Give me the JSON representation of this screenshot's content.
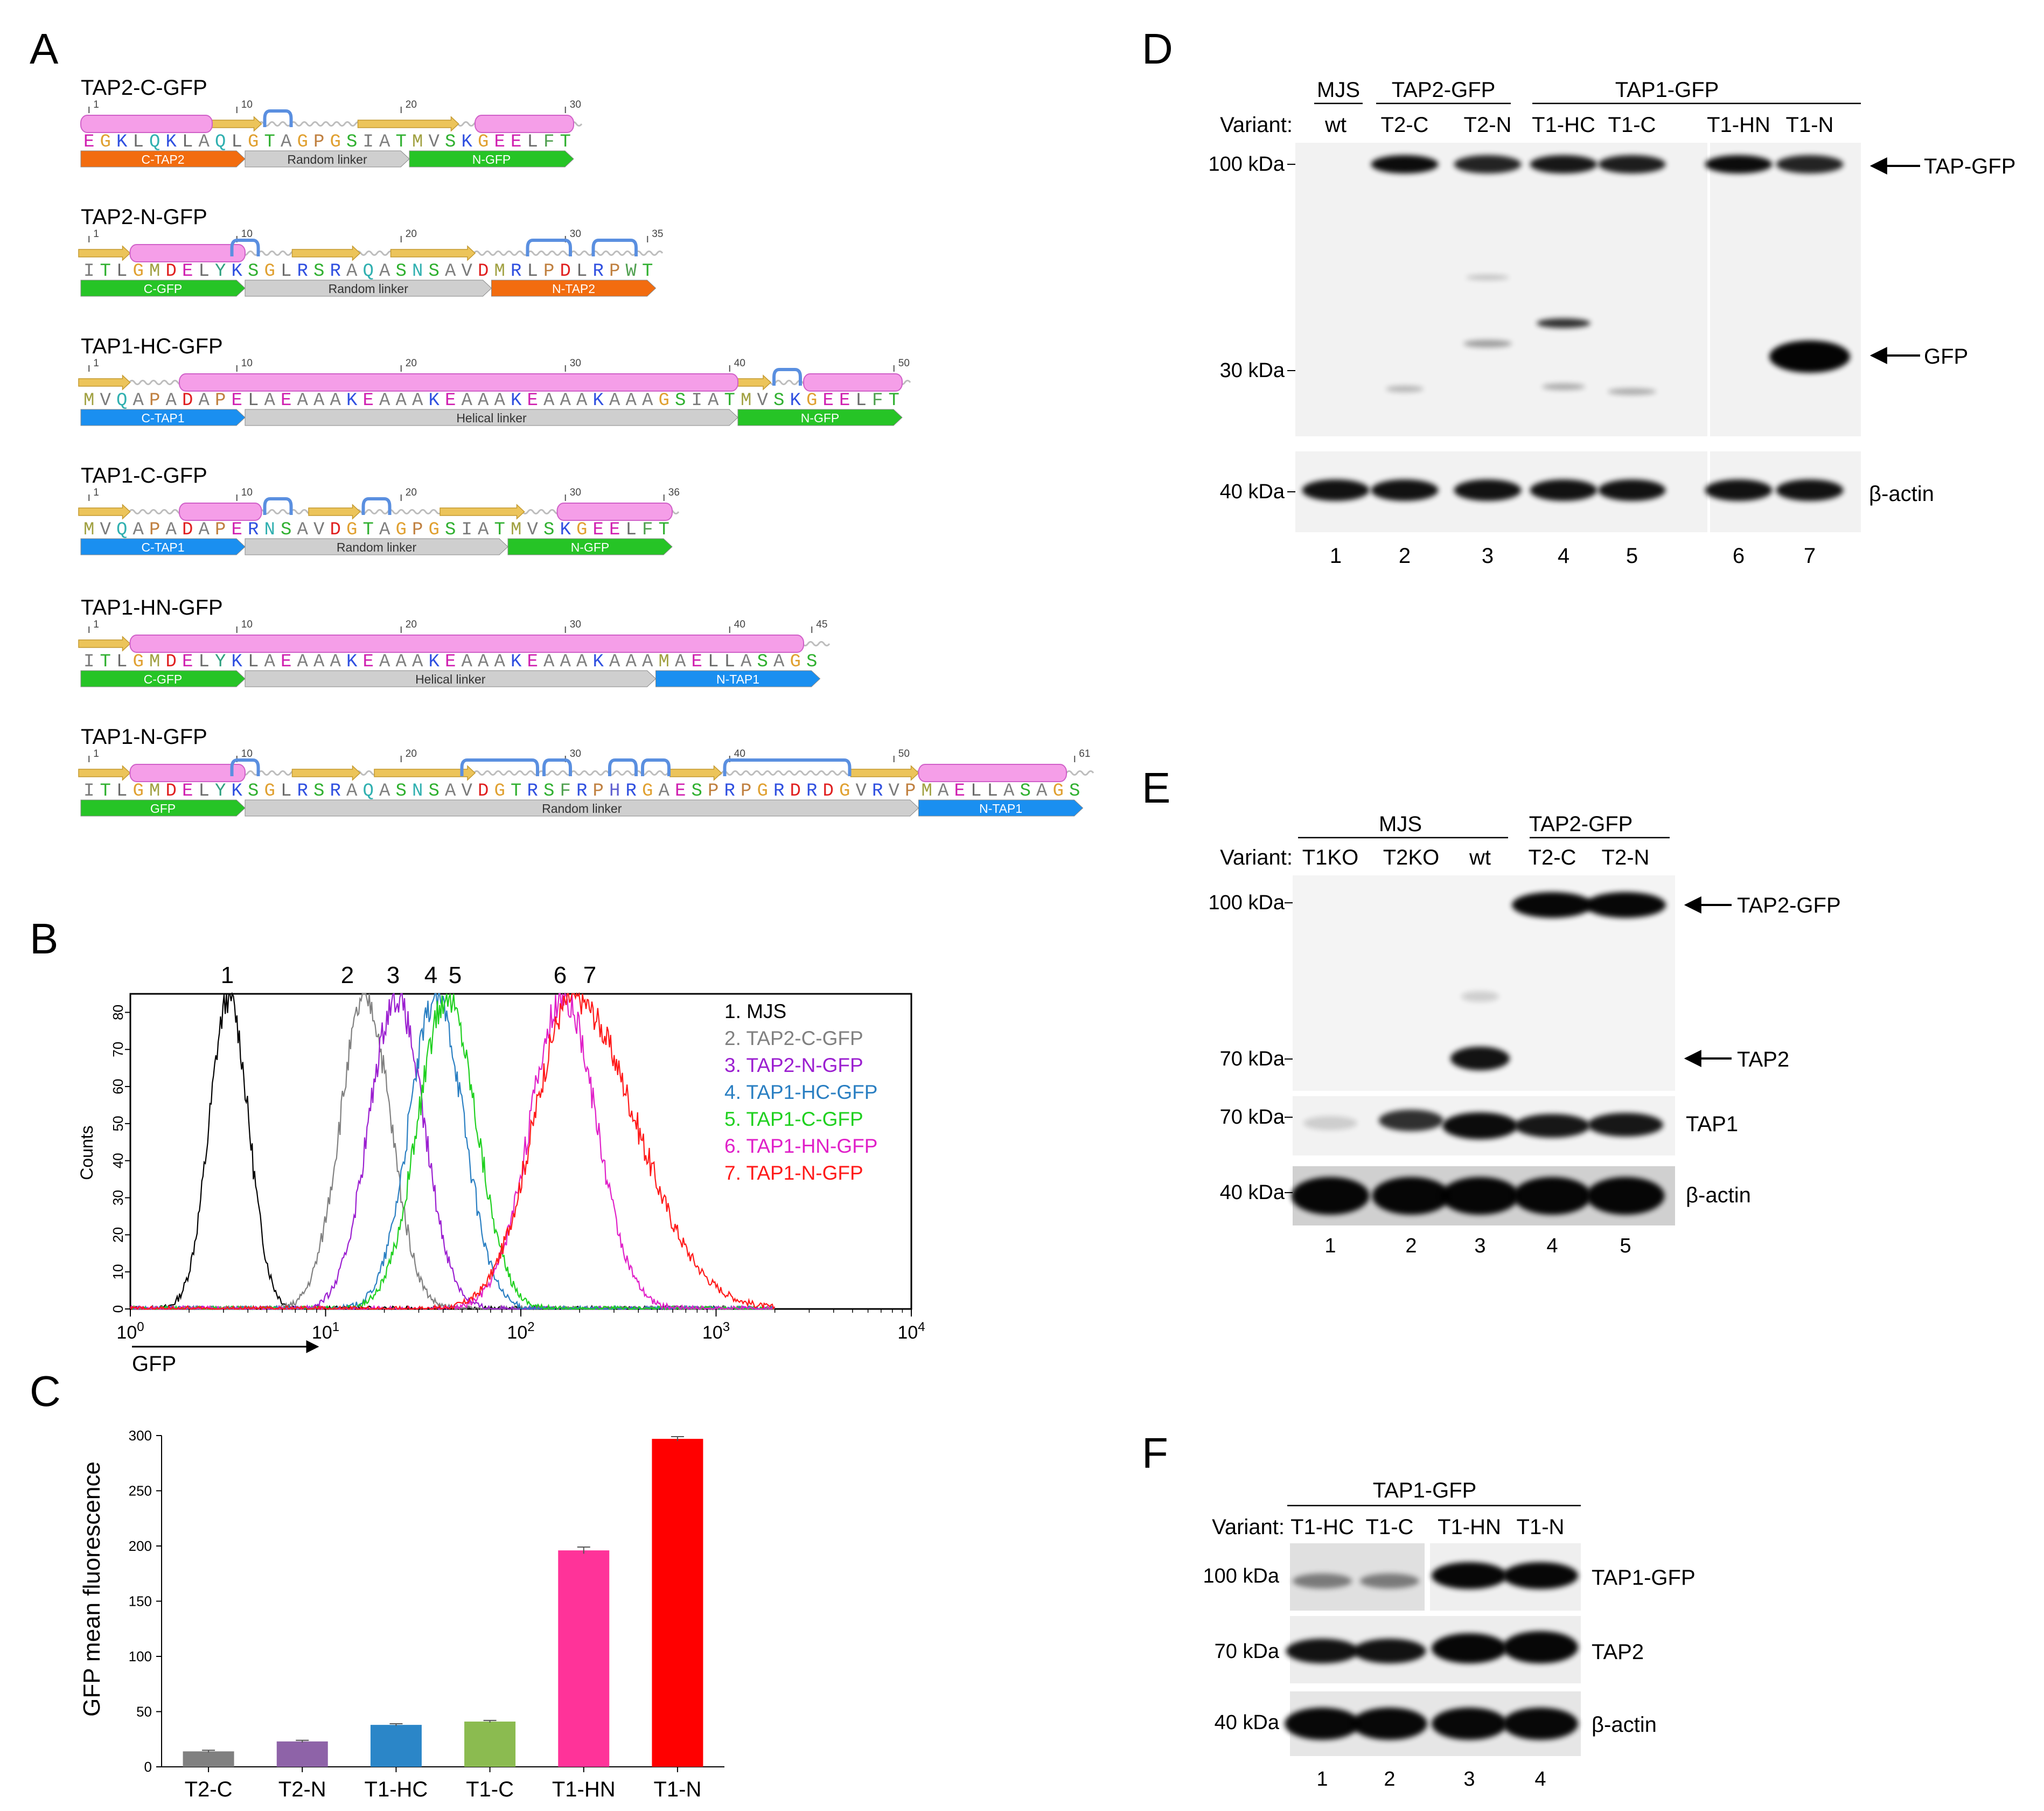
{
  "panel_letters": {
    "a": "A",
    "b": "B",
    "c": "C",
    "d": "D",
    "e": "E",
    "f": "F"
  },
  "panel_a": {
    "constructs": [
      {
        "title": "TAP2-C-GFP",
        "seq": "EGKLQKLAQLGTAGPGSIATMVSKGEELFT",
        "ticks": [
          {
            "pos": 1,
            "label": "1"
          },
          {
            "pos": 10,
            "label": "10"
          },
          {
            "pos": 20,
            "label": "20"
          },
          {
            "pos": 30,
            "label": "30"
          }
        ],
        "segments": [
          {
            "label": "C-TAP2",
            "start": 1,
            "end": 10,
            "color": "#f26c0f"
          },
          {
            "label": "Random linker",
            "start": 11,
            "end": 20,
            "color": "#cfcfcf"
          },
          {
            "label": "N-GFP",
            "start": 21,
            "end": 30,
            "color": "#26c426"
          }
        ],
        "helices": [
          [
            1,
            8
          ],
          [
            25,
            30
          ]
        ],
        "strands": [
          [
            9,
            11
          ],
          [
            18,
            23
          ]
        ],
        "turns": [
          [
            12,
            13
          ]
        ]
      },
      {
        "title": "TAP2-N-GFP",
        "seq": "ITLGMDELYKSGLRSRAQASNSAVDMRLPDLRPWT",
        "ticks": [
          {
            "pos": 1,
            "label": "1"
          },
          {
            "pos": 10,
            "label": "10"
          },
          {
            "pos": 20,
            "label": "20"
          },
          {
            "pos": 30,
            "label": "30"
          },
          {
            "pos": 35,
            "label": "35"
          }
        ],
        "segments": [
          {
            "label": "C-GFP",
            "start": 1,
            "end": 10,
            "color": "#26c426"
          },
          {
            "label": "Random linker",
            "start": 11,
            "end": 25,
            "color": "#cfcfcf"
          },
          {
            "label": "N-TAP2",
            "start": 26,
            "end": 35,
            "color": "#f26c0f"
          }
        ],
        "helices": [
          [
            4,
            10
          ]
        ],
        "strands": [
          [
            1,
            3
          ],
          [
            14,
            17
          ],
          [
            20,
            24
          ]
        ],
        "turns": [
          [
            10,
            11
          ],
          [
            28,
            30
          ],
          [
            32,
            34
          ]
        ]
      },
      {
        "title": "TAP1-HC-GFP",
        "seq": "MVQAPADAPELAEAAAKEAAAKEAAAKEAAAKAAAGSIATMVSKGEELFT",
        "ticks": [
          {
            "pos": 1,
            "label": "1"
          },
          {
            "pos": 10,
            "label": "10"
          },
          {
            "pos": 20,
            "label": "20"
          },
          {
            "pos": 30,
            "label": "30"
          },
          {
            "pos": 40,
            "label": "40"
          },
          {
            "pos": 50,
            "label": "50"
          }
        ],
        "segments": [
          {
            "label": "C-TAP1",
            "start": 1,
            "end": 10,
            "color": "#1a8ff0"
          },
          {
            "label": "Helical linker",
            "start": 11,
            "end": 40,
            "color": "#cfcfcf"
          },
          {
            "label": "N-GFP",
            "start": 41,
            "end": 50,
            "color": "#26c426"
          }
        ],
        "helices": [
          [
            7,
            40
          ],
          [
            45,
            50
          ]
        ],
        "strands": [
          [
            1,
            3
          ],
          [
            41,
            42
          ]
        ],
        "turns": [
          [
            43,
            44
          ]
        ]
      },
      {
        "title": "TAP1-C-GFP",
        "seq": "MVQAPADAPERNSAVDGTAGPGSIATMVSKGEELFT",
        "ticks": [
          {
            "pos": 1,
            "label": "1"
          },
          {
            "pos": 10,
            "label": "10"
          },
          {
            "pos": 20,
            "label": "20"
          },
          {
            "pos": 30,
            "label": "30"
          },
          {
            "pos": 36,
            "label": "36"
          }
        ],
        "segments": [
          {
            "label": "C-TAP1",
            "start": 1,
            "end": 10,
            "color": "#1a8ff0"
          },
          {
            "label": "Random linker",
            "start": 11,
            "end": 26,
            "color": "#cfcfcf"
          },
          {
            "label": "N-GFP",
            "start": 27,
            "end": 36,
            "color": "#26c426"
          }
        ],
        "helices": [
          [
            7,
            11
          ],
          [
            30,
            36
          ]
        ],
        "strands": [
          [
            1,
            3
          ],
          [
            15,
            17
          ],
          [
            23,
            27
          ]
        ],
        "turns": [
          [
            12,
            13
          ],
          [
            18,
            19
          ]
        ]
      },
      {
        "title": "TAP1-HN-GFP",
        "seq": "ITLGMDELYKLAEAAAKEAAAKEAAAKEAAAKAAAMAELLASAGS",
        "ticks": [
          {
            "pos": 1,
            "label": "1"
          },
          {
            "pos": 10,
            "label": "10"
          },
          {
            "pos": 20,
            "label": "20"
          },
          {
            "pos": 30,
            "label": "30"
          },
          {
            "pos": 40,
            "label": "40"
          },
          {
            "pos": 45,
            "label": "45"
          }
        ],
        "segments": [
          {
            "label": "C-GFP",
            "start": 1,
            "end": 10,
            "color": "#26c426"
          },
          {
            "label": "Helical linker",
            "start": 11,
            "end": 35,
            "color": "#cfcfcf"
          },
          {
            "label": "N-TAP1",
            "start": 36,
            "end": 45,
            "color": "#1a8ff0"
          }
        ],
        "helices": [
          [
            4,
            44
          ]
        ],
        "strands": [
          [
            1,
            3
          ]
        ],
        "turns": []
      },
      {
        "title": "TAP1-N-GFP",
        "seq": "ITLGMDELYKSGLRSRAQASNSAVDGTRSFRPHRGAESPRPGRDRDGVRVPMAELLASAGS",
        "ticks": [
          {
            "pos": 1,
            "label": "1"
          },
          {
            "pos": 10,
            "label": "10"
          },
          {
            "pos": 20,
            "label": "20"
          },
          {
            "pos": 30,
            "label": "30"
          },
          {
            "pos": 40,
            "label": "40"
          },
          {
            "pos": 50,
            "label": "50"
          },
          {
            "pos": 61,
            "label": "61"
          }
        ],
        "segments": [
          {
            "label": "GFP",
            "start": 1,
            "end": 10,
            "color": "#26c426"
          },
          {
            "label": "Random linker",
            "start": 11,
            "end": 51,
            "color": "#cfcfcf"
          },
          {
            "label": "N-TAP1",
            "start": 52,
            "end": 61,
            "color": "#1a8ff0"
          }
        ],
        "helices": [
          [
            4,
            10
          ],
          [
            52,
            60
          ]
        ],
        "strands": [
          [
            1,
            3
          ],
          [
            14,
            17
          ],
          [
            19,
            24
          ],
          [
            37,
            39
          ],
          [
            48,
            51
          ]
        ],
        "turns": [
          [
            10,
            11
          ],
          [
            24,
            28
          ],
          [
            29,
            30
          ],
          [
            33,
            34
          ],
          [
            35,
            36
          ],
          [
            40,
            47
          ]
        ]
      }
    ]
  },
  "panel_b": {
    "peak_labels": [
      "1",
      "2",
      "3",
      "4",
      "5",
      "6",
      "7"
    ],
    "ylabel": "Counts",
    "xlabel": "GFP",
    "legend": [
      "1. MJS",
      "2. TAP2-C-GFP",
      "3. TAP2-N-GFP",
      "4. TAP1-HC-GFP",
      "5. TAP1-C-GFP",
      "6. TAP1-HN-GFP",
      "7. TAP1-N-GFP"
    ],
    "colors": [
      "#000000",
      "#808080",
      "#9b1fd0",
      "#2a7fc2",
      "#1fd01f",
      "#e020c8",
      "#ff1a1a"
    ],
    "yticks": [
      "0",
      "10",
      "20",
      "30",
      "40",
      "50",
      "60",
      "70",
      "80"
    ],
    "xticks": [
      {
        "base": "10",
        "exp": "0"
      },
      {
        "base": "10",
        "exp": "1"
      },
      {
        "base": "10",
        "exp": "2"
      },
      {
        "base": "10",
        "exp": "3"
      },
      {
        "base": "10",
        "exp": "4"
      }
    ]
  },
  "chart_data": [
    {
      "type": "line",
      "xscale": "log",
      "xlim": [
        1,
        10000
      ],
      "ylim": [
        0,
        85
      ],
      "xlabel": "GFP",
      "ylabel": "Counts",
      "series": [
        {
          "name": "1. MJS",
          "peak_x": 3.2,
          "peak_y": 84,
          "color": "#000000"
        },
        {
          "name": "2. TAP2-C-GFP",
          "peak_x": 16,
          "peak_y": 84,
          "color": "#808080"
        },
        {
          "name": "3. TAP2-N-GFP",
          "peak_x": 23,
          "peak_y": 84,
          "color": "#9b1fd0"
        },
        {
          "name": "4. TAP1-HC-GFP",
          "peak_x": 37,
          "peak_y": 84,
          "color": "#2a7fc2"
        },
        {
          "name": "5. TAP1-C-GFP",
          "peak_x": 42,
          "peak_y": 84,
          "color": "#1fd01f"
        },
        {
          "name": "6. TAP1-HN-GFP",
          "peak_x": 165,
          "peak_y": 84,
          "color": "#e020c8"
        },
        {
          "name": "7. TAP1-N-GFP",
          "peak_x": 185,
          "peak_y": 84,
          "color": "#ff1a1a"
        }
      ]
    },
    {
      "type": "bar",
      "categories": [
        "T2-C",
        "T2-N",
        "T1-HC",
        "T1-C",
        "T1-HN",
        "T1-N"
      ],
      "values": [
        14,
        23,
        38,
        41,
        196,
        297
      ],
      "errors": [
        1,
        1,
        1,
        1,
        3,
        2
      ],
      "colors": [
        "#808080",
        "#8e63a8",
        "#2b86c8",
        "#8bbb50",
        "#ff3399",
        "#ff0000"
      ],
      "ylabel": "GFP mean fluorescence",
      "ylim": [
        0,
        300
      ],
      "yticks": [
        0,
        50,
        100,
        150,
        200,
        250,
        300
      ]
    }
  ],
  "panel_d": {
    "group_labels": [
      "MJS",
      "TAP2-GFP",
      "TAP1-GFP"
    ],
    "variant_label": "Variant:",
    "variants": [
      "wt",
      "T2-C",
      "T2-N",
      "T1-HC",
      "T1-C",
      "T1-HN",
      "T1-N"
    ],
    "markers": [
      "100 kDa",
      "30 kDa",
      "40 kDa"
    ],
    "arrow_labels": [
      "TAP-GFP",
      "GFP"
    ],
    "actin_label": "β-actin",
    "lanes": [
      "1",
      "2",
      "3",
      "4",
      "5",
      "6",
      "7"
    ]
  },
  "panel_e": {
    "group_labels": [
      "MJS",
      "TAP2-GFP"
    ],
    "variant_label": "Variant:",
    "variants": [
      "T1KO",
      "T2KO",
      "wt",
      "T2-C",
      "T2-N"
    ],
    "markers": [
      "100 kDa",
      "70 kDa",
      "70 kDa",
      "40 kDa"
    ],
    "arrow_labels": [
      "TAP2-GFP",
      "TAP2"
    ],
    "tap1_label": "TAP1",
    "actin_label": "β-actin",
    "lanes": [
      "1",
      "2",
      "3",
      "4",
      "5"
    ]
  },
  "panel_f": {
    "group_label": "TAP1-GFP",
    "variant_label": "Variant:",
    "variants": [
      "T1-HC",
      "T1-C",
      "T1-HN",
      "T1-N"
    ],
    "markers": [
      "100 kDa",
      "70 kDa",
      "40 kDa"
    ],
    "row_labels": [
      "TAP1-GFP",
      "TAP2",
      "β-actin"
    ],
    "lanes": [
      "1",
      "2",
      "3",
      "4"
    ]
  }
}
